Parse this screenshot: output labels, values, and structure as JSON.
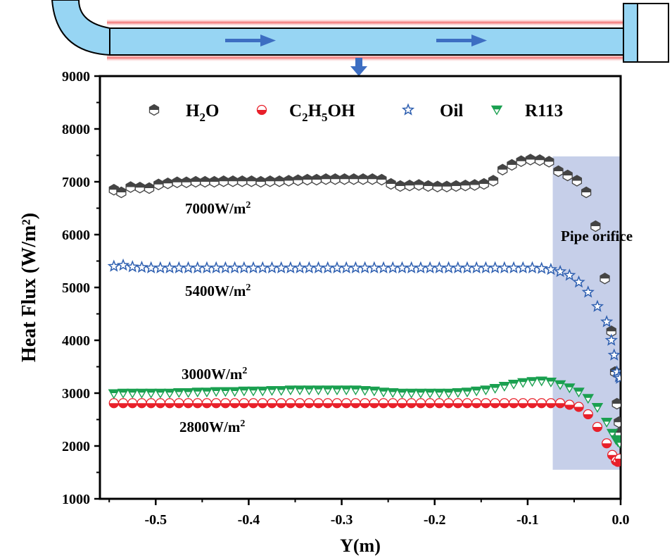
{
  "chart_data": {
    "type": "scatter",
    "xlabel": "Y(m)",
    "ylabel": "Heat Flux (W/m²)",
    "xlim": [
      -0.56,
      0.0
    ],
    "ylim": [
      1000,
      9000
    ],
    "x_ticks": [
      -0.5,
      -0.4,
      -0.3,
      -0.2,
      -0.1,
      0.0
    ],
    "x_tick_labels": [
      "-0.5",
      "-0.4",
      "-0.3",
      "-0.2",
      "-0.1",
      "0.0"
    ],
    "y_ticks": [
      1000,
      2000,
      3000,
      4000,
      5000,
      6000,
      7000,
      8000,
      9000
    ],
    "y_tick_labels": [
      "1000",
      "2000",
      "3000",
      "4000",
      "5000",
      "6000",
      "7000",
      "8000",
      "9000"
    ],
    "legend": {
      "placement": "top",
      "entries": [
        {
          "base": "H",
          "sub1": "2",
          "mid": "O",
          "sub2": "",
          "tail": ""
        },
        {
          "base": "C",
          "sub1": "2",
          "mid": "H",
          "sub2": "5",
          "tail": "OH"
        },
        {
          "base": "Oil",
          "sub1": "",
          "mid": "",
          "sub2": "",
          "tail": ""
        },
        {
          "base": "R113",
          "sub1": "",
          "mid": "",
          "sub2": "",
          "tail": ""
        }
      ]
    },
    "annotations": [
      {
        "base": "7000W/m",
        "sup": "2"
      },
      {
        "base": "5400W/m",
        "sup": "2"
      },
      {
        "base": "3000W/m",
        "sup": "2"
      },
      {
        "base": "2800W/m",
        "sup": "2"
      }
    ],
    "region": {
      "label": "Pipe orifice",
      "x_range": [
        -0.073,
        0.0
      ],
      "y_range": [
        1550,
        7480
      ]
    },
    "series": [
      {
        "name": "H2O",
        "marker": "hexagon",
        "color": "#444444",
        "x": [
          -0.545,
          -0.537,
          -0.527,
          -0.517,
          -0.507,
          -0.497,
          -0.487,
          -0.477,
          -0.467,
          -0.457,
          -0.447,
          -0.437,
          -0.427,
          -0.417,
          -0.407,
          -0.397,
          -0.387,
          -0.377,
          -0.367,
          -0.357,
          -0.347,
          -0.337,
          -0.327,
          -0.317,
          -0.307,
          -0.297,
          -0.287,
          -0.277,
          -0.267,
          -0.257,
          -0.247,
          -0.237,
          -0.227,
          -0.217,
          -0.207,
          -0.197,
          -0.187,
          -0.177,
          -0.167,
          -0.157,
          -0.147,
          -0.137,
          -0.127,
          -0.117,
          -0.107,
          -0.097,
          -0.087,
          -0.077,
          -0.067,
          -0.057,
          -0.047,
          -0.037,
          -0.027,
          -0.017,
          -0.01,
          -0.006,
          -0.004,
          -0.002,
          -0.001
        ],
        "y": [
          6850,
          6800,
          6900,
          6890,
          6880,
          6950,
          6970,
          6990,
          6990,
          7000,
          7000,
          7000,
          7010,
          7010,
          7010,
          7010,
          7000,
          7010,
          7010,
          7020,
          7030,
          7040,
          7040,
          7050,
          7050,
          7050,
          7050,
          7050,
          7050,
          7040,
          6960,
          6920,
          6930,
          6940,
          6920,
          6910,
          6910,
          6920,
          6930,
          6940,
          6960,
          7020,
          7230,
          7320,
          7390,
          7420,
          7410,
          7380,
          7200,
          7120,
          7020,
          6800,
          6160,
          5170,
          4170,
          3400,
          2800,
          2450,
          2250
        ]
      },
      {
        "name": "C2H5OH",
        "marker": "half-circle",
        "color": "#e8202a",
        "x": [
          -0.545,
          -0.535,
          -0.525,
          -0.515,
          -0.505,
          -0.495,
          -0.485,
          -0.475,
          -0.465,
          -0.455,
          -0.445,
          -0.435,
          -0.425,
          -0.415,
          -0.405,
          -0.395,
          -0.385,
          -0.375,
          -0.365,
          -0.355,
          -0.345,
          -0.335,
          -0.325,
          -0.315,
          -0.305,
          -0.295,
          -0.285,
          -0.275,
          -0.265,
          -0.255,
          -0.245,
          -0.235,
          -0.225,
          -0.215,
          -0.205,
          -0.195,
          -0.185,
          -0.175,
          -0.165,
          -0.155,
          -0.145,
          -0.135,
          -0.125,
          -0.115,
          -0.105,
          -0.095,
          -0.085,
          -0.075,
          -0.065,
          -0.055,
          -0.045,
          -0.035,
          -0.025,
          -0.015,
          -0.009,
          -0.005,
          -0.003,
          -0.001
        ],
        "y": [
          2810,
          2810,
          2810,
          2810,
          2810,
          2810,
          2810,
          2810,
          2810,
          2810,
          2810,
          2810,
          2810,
          2810,
          2810,
          2810,
          2810,
          2810,
          2810,
          2810,
          2810,
          2810,
          2810,
          2810,
          2810,
          2810,
          2810,
          2810,
          2810,
          2810,
          2810,
          2810,
          2810,
          2810,
          2810,
          2810,
          2810,
          2810,
          2810,
          2810,
          2810,
          2810,
          2810,
          2810,
          2810,
          2810,
          2810,
          2810,
          2810,
          2780,
          2740,
          2600,
          2360,
          2050,
          1830,
          1720,
          1700,
          1760
        ]
      },
      {
        "name": "Oil",
        "marker": "star",
        "color": "#2e5fb0",
        "x": [
          -0.545,
          -0.535,
          -0.525,
          -0.515,
          -0.505,
          -0.495,
          -0.485,
          -0.475,
          -0.465,
          -0.455,
          -0.445,
          -0.435,
          -0.425,
          -0.415,
          -0.405,
          -0.395,
          -0.385,
          -0.375,
          -0.365,
          -0.355,
          -0.345,
          -0.335,
          -0.325,
          -0.315,
          -0.305,
          -0.295,
          -0.285,
          -0.275,
          -0.265,
          -0.255,
          -0.245,
          -0.235,
          -0.225,
          -0.215,
          -0.205,
          -0.195,
          -0.185,
          -0.175,
          -0.165,
          -0.155,
          -0.145,
          -0.135,
          -0.125,
          -0.115,
          -0.105,
          -0.095,
          -0.085,
          -0.075,
          -0.065,
          -0.055,
          -0.045,
          -0.035,
          -0.025,
          -0.015,
          -0.01,
          -0.007,
          -0.004,
          -0.002,
          -0.001
        ],
        "y": [
          5400,
          5420,
          5390,
          5380,
          5370,
          5370,
          5370,
          5370,
          5370,
          5370,
          5370,
          5370,
          5370,
          5370,
          5370,
          5370,
          5370,
          5370,
          5370,
          5370,
          5370,
          5370,
          5370,
          5370,
          5370,
          5370,
          5370,
          5370,
          5370,
          5370,
          5370,
          5370,
          5370,
          5370,
          5370,
          5370,
          5370,
          5370,
          5370,
          5370,
          5370,
          5370,
          5370,
          5370,
          5370,
          5370,
          5360,
          5340,
          5300,
          5230,
          5100,
          4910,
          4640,
          4350,
          4000,
          3720,
          3400,
          3310,
          3280
        ]
      },
      {
        "name": "R113",
        "marker": "triangle-down",
        "color": "#1aa050",
        "x": [
          -0.545,
          -0.535,
          -0.525,
          -0.515,
          -0.505,
          -0.495,
          -0.485,
          -0.475,
          -0.465,
          -0.455,
          -0.445,
          -0.435,
          -0.425,
          -0.415,
          -0.405,
          -0.395,
          -0.385,
          -0.375,
          -0.365,
          -0.355,
          -0.345,
          -0.335,
          -0.325,
          -0.315,
          -0.305,
          -0.295,
          -0.285,
          -0.275,
          -0.265,
          -0.255,
          -0.245,
          -0.235,
          -0.225,
          -0.215,
          -0.205,
          -0.195,
          -0.185,
          -0.175,
          -0.165,
          -0.155,
          -0.145,
          -0.135,
          -0.125,
          -0.115,
          -0.105,
          -0.095,
          -0.085,
          -0.075,
          -0.065,
          -0.055,
          -0.045,
          -0.035,
          -0.025,
          -0.015,
          -0.009,
          -0.005,
          -0.003,
          -0.001
        ],
        "y": [
          2990,
          3000,
          3000,
          3000,
          3000,
          3000,
          3000,
          3010,
          3010,
          3020,
          3020,
          3030,
          3030,
          3030,
          3040,
          3040,
          3040,
          3050,
          3050,
          3060,
          3060,
          3060,
          3060,
          3060,
          3060,
          3060,
          3060,
          3050,
          3040,
          3020,
          3010,
          3000,
          3000,
          3000,
          3000,
          3000,
          3000,
          3010,
          3020,
          3040,
          3060,
          3090,
          3130,
          3170,
          3200,
          3220,
          3230,
          3210,
          3160,
          3100,
          3020,
          2900,
          2730,
          2450,
          2240,
          2120,
          2080,
          2050
        ]
      }
    ]
  }
}
